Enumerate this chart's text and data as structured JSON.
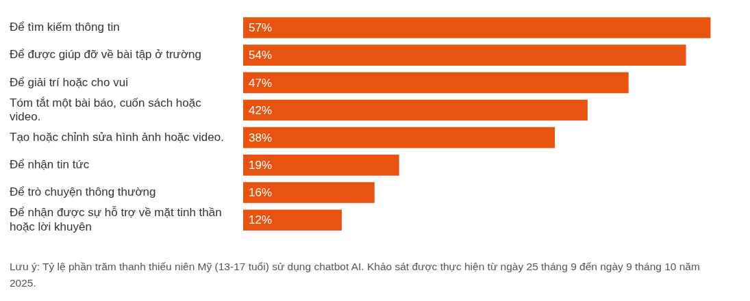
{
  "chart_data": {
    "type": "bar",
    "orientation": "horizontal",
    "categories": [
      "Để tìm kiếm thông tin",
      "Để được giúp đỡ về bài tập ở trường",
      "Để giải trí hoặc cho vui",
      "Tóm tắt một bài báo, cuốn sách hoặc video.",
      "Tạo hoặc chỉnh sửa hình ảnh hoặc video.",
      "Để nhận tin tức",
      "Để trò chuyện thông thường",
      "Để nhận được sự hỗ trợ về mặt tinh thần hoặc lời khuyên"
    ],
    "values": [
      57,
      54,
      47,
      42,
      38,
      19,
      16,
      12
    ],
    "value_labels": [
      "57%",
      "54%",
      "47%",
      "42%",
      "38%",
      "19%",
      "16%",
      "12%"
    ],
    "color": "#e8540f",
    "annotations": [
      "Lưu ý: Tỷ lệ phần trăm thanh thiếu niên Mỹ (13-17 tuổi) sử dụng chatbot AI. Khảo sát được thực hiện từ ngày 25 tháng 9 đến ngày 9 tháng 10 năm 2025."
    ]
  }
}
